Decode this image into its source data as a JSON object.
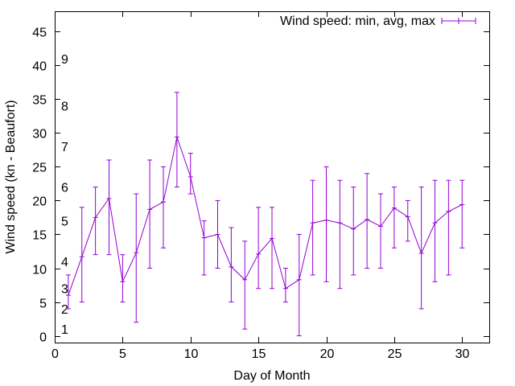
{
  "chart_data": {
    "type": "line",
    "title": "",
    "xlabel": "Day of Month",
    "ylabel": "Wind speed (kn - Beaufort)",
    "xlim": [
      0,
      32
    ],
    "ylim": [
      -1,
      48
    ],
    "x_ticks": [
      0,
      5,
      10,
      15,
      20,
      25,
      30
    ],
    "y_ticks": [
      0,
      5,
      10,
      15,
      20,
      25,
      30,
      35,
      40,
      45
    ],
    "grid": false,
    "legend_position": "top-right",
    "colors": {
      "series": "#9400d3",
      "axis": "#000000"
    },
    "beaufort_labels": [
      {
        "label": "1",
        "y": 1
      },
      {
        "label": "2",
        "y": 4
      },
      {
        "label": "3",
        "y": 7
      },
      {
        "label": "4",
        "y": 11
      },
      {
        "label": "5",
        "y": 17
      },
      {
        "label": "6",
        "y": 22
      },
      {
        "label": "7",
        "y": 28
      },
      {
        "label": "8",
        "y": 34
      },
      {
        "label": "9",
        "y": 41
      }
    ],
    "series": [
      {
        "name": "Wind speed: min, avg, max",
        "points": [
          {
            "x": 1,
            "avg": 6,
            "min": 4,
            "max": 9
          },
          {
            "x": 2,
            "avg": 11.7,
            "min": 5,
            "max": 19
          },
          {
            "x": 3,
            "avg": 17.5,
            "min": 12,
            "max": 22
          },
          {
            "x": 4,
            "avg": 20.3,
            "min": 12,
            "max": 26
          },
          {
            "x": 5,
            "avg": 8,
            "min": 5,
            "max": 12
          },
          {
            "x": 6,
            "avg": 12.3,
            "min": 2,
            "max": 21
          },
          {
            "x": 7,
            "avg": 18.7,
            "min": 10,
            "max": 26
          },
          {
            "x": 8,
            "avg": 19.8,
            "min": 13,
            "max": 25
          },
          {
            "x": 9,
            "avg": 29.4,
            "min": 22,
            "max": 36
          },
          {
            "x": 10,
            "avg": 23.5,
            "min": 21,
            "max": 27
          },
          {
            "x": 11,
            "avg": 14.5,
            "min": 9,
            "max": 17
          },
          {
            "x": 12,
            "avg": 15,
            "min": 10,
            "max": 20
          },
          {
            "x": 13,
            "avg": 10.2,
            "min": 5,
            "max": 16
          },
          {
            "x": 14,
            "avg": 8.3,
            "min": 1,
            "max": 14
          },
          {
            "x": 15,
            "avg": 12.1,
            "min": 7,
            "max": 19
          },
          {
            "x": 16,
            "avg": 14.4,
            "min": 7,
            "max": 19
          },
          {
            "x": 17,
            "avg": 7,
            "min": 5,
            "max": 10
          },
          {
            "x": 18,
            "avg": 8.3,
            "min": 0,
            "max": 15
          },
          {
            "x": 19,
            "avg": 16.7,
            "min": 9,
            "max": 23
          },
          {
            "x": 20,
            "avg": 17.1,
            "min": 8,
            "max": 25
          },
          {
            "x": 21,
            "avg": 16.7,
            "min": 7,
            "max": 23
          },
          {
            "x": 22,
            "avg": 15.8,
            "min": 9,
            "max": 22
          },
          {
            "x": 23,
            "avg": 17.2,
            "min": 10,
            "max": 24
          },
          {
            "x": 24,
            "avg": 16.2,
            "min": 10,
            "max": 21
          },
          {
            "x": 25,
            "avg": 18.9,
            "min": 13,
            "max": 22
          },
          {
            "x": 26,
            "avg": 17.6,
            "min": 14,
            "max": 20
          },
          {
            "x": 27,
            "avg": 12.2,
            "min": 4,
            "max": 22
          },
          {
            "x": 28,
            "avg": 16.7,
            "min": 8,
            "max": 23
          },
          {
            "x": 29,
            "avg": 18.4,
            "min": 9,
            "max": 23
          },
          {
            "x": 30,
            "avg": 19.4,
            "min": 13,
            "max": 23
          }
        ]
      }
    ]
  }
}
